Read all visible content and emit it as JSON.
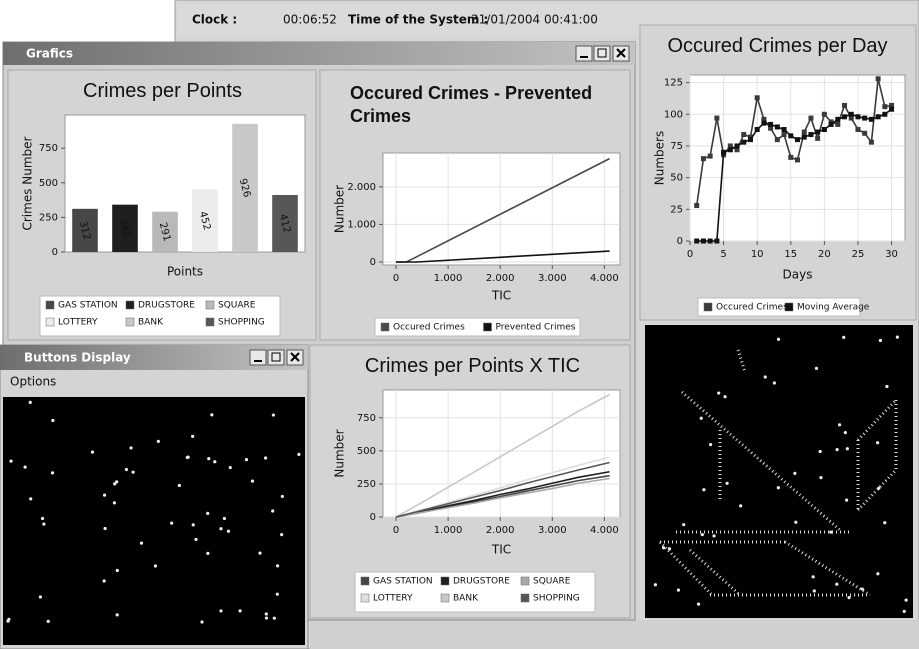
{
  "status_bar": {
    "clock_label": "Clock :",
    "clock": "00:06:52",
    "system_time_label": "Time of the System :",
    "system_time": "31/01/2004 00:41:00"
  },
  "windows": {
    "grafics": {
      "title": "Grafics"
    },
    "buttons_display": {
      "title": "Buttons Display",
      "menu": [
        "Options"
      ]
    }
  },
  "chart_data": [
    {
      "type": "bar",
      "title": "Crimes per Points",
      "categories": [
        "GAS STATION",
        "DRUGSTORE",
        "SQUARE",
        "LOTTERY",
        "BANK",
        "SHOPPING"
      ],
      "values": [
        312,
        342,
        291,
        452,
        926,
        412
      ],
      "colors": [
        "#474747",
        "#1e1e1e",
        "#b9b9b9",
        "#ececec",
        "#c8c8c8",
        "#575757"
      ],
      "x_label": "Points",
      "y_label": "Crimes Number",
      "ylim": [
        0,
        990
      ],
      "yticks": [
        0,
        250,
        500,
        750
      ],
      "grid": false,
      "legend": "bottom"
    },
    {
      "type": "line",
      "title": "Occured Crimes - Prevented Crimes",
      "x": [
        0,
        200,
        400,
        4100
      ],
      "series": [
        {
          "name": "Occured Crimes",
          "color": "#4a4a4a",
          "values": [
            0,
            0,
            141,
            2750
          ]
        },
        {
          "name": "Prevented Crimes",
          "color": "#111111",
          "values": [
            0,
            0,
            0,
            290
          ]
        }
      ],
      "x_label": "TIC",
      "y_label": "Number",
      "xlim": [
        -250,
        4300
      ],
      "xticks": [
        0,
        {
          "value": 1000,
          "label": "1.000"
        },
        {
          "value": 2000,
          "label": "2.000"
        },
        {
          "value": 3000,
          "label": "3.000"
        },
        {
          "value": 4000,
          "label": "4.000"
        }
      ],
      "ylim": [
        -80,
        2900
      ],
      "yticks": [
        0,
        {
          "value": 1000,
          "label": "1.000"
        },
        {
          "value": 2000,
          "label": "2.000"
        }
      ],
      "grid": true,
      "markers": false,
      "legend": "bottom"
    },
    {
      "type": "line",
      "title": "Occured Crimes per Day",
      "x": [
        1,
        2,
        3,
        4,
        5,
        6,
        7,
        8,
        9,
        10,
        11,
        12,
        13,
        14,
        15,
        16,
        17,
        18,
        19,
        20,
        21,
        22,
        23,
        24,
        25,
        26,
        27,
        28,
        29,
        30
      ],
      "series": [
        {
          "name": "Occured Crimes",
          "color": "#3a3a3a",
          "values": [
            28,
            65,
            67,
            97,
            68,
            75,
            72,
            84,
            82,
            113,
            96,
            89,
            80,
            84,
            66,
            64,
            86,
            97,
            81,
            100,
            94,
            92,
            107,
            97,
            88,
            85,
            78,
            128,
            106,
            107
          ]
        },
        {
          "name": "Moving Average",
          "color": "#111111",
          "values": [
            0,
            0,
            0,
            0,
            70,
            72,
            75,
            78,
            80,
            88,
            93,
            92,
            90,
            88,
            83,
            80,
            82,
            84,
            86,
            88,
            92,
            96,
            98,
            100,
            98,
            97,
            96,
            98,
            100,
            104
          ]
        }
      ],
      "x_label": "Days",
      "y_label": "Numbers",
      "xlim": [
        0,
        32
      ],
      "xticks": [
        0,
        5,
        10,
        15,
        20,
        25,
        30
      ],
      "ylim": [
        0,
        131
      ],
      "yticks": [
        0,
        25,
        50,
        75,
        100,
        125
      ],
      "grid": true,
      "markers": true,
      "legend": "bottom"
    },
    {
      "type": "line",
      "title": "Crimes per Points X TIC",
      "x": [
        0,
        500,
        1000,
        1500,
        2000,
        2500,
        3000,
        3500,
        4100
      ],
      "series": [
        {
          "name": "GAS STATION",
          "color": "#474747",
          "values": [
            0,
            35,
            75,
            115,
            155,
            195,
            235,
            275,
            312
          ]
        },
        {
          "name": "DRUGSTORE",
          "color": "#1e1e1e",
          "values": [
            0,
            40,
            85,
            125,
            170,
            210,
            255,
            300,
            342
          ]
        },
        {
          "name": "SQUARE",
          "color": "#a9a9a9",
          "values": [
            0,
            35,
            70,
            105,
            145,
            180,
            215,
            255,
            291
          ]
        },
        {
          "name": "LOTTERY",
          "color": "#dedede",
          "values": [
            0,
            55,
            110,
            165,
            220,
            280,
            335,
            390,
            452
          ]
        },
        {
          "name": "BANK",
          "color": "#c8c8c8",
          "values": [
            0,
            110,
            225,
            340,
            455,
            570,
            685,
            800,
            926
          ]
        },
        {
          "name": "SHOPPING",
          "color": "#575757",
          "values": [
            0,
            50,
            100,
            150,
            200,
            255,
            305,
            355,
            412
          ]
        }
      ],
      "x_label": "TIC",
      "y_label": "Number",
      "xlim": [
        -250,
        4300
      ],
      "xticks": [
        0,
        {
          "value": 1000,
          "label": "1.000"
        },
        {
          "value": 2000,
          "label": "2.000"
        },
        {
          "value": 3000,
          "label": "3.000"
        },
        {
          "value": 4000,
          "label": "4.000"
        }
      ],
      "ylim": [
        0,
        960
      ],
      "yticks": [
        0,
        250,
        500,
        750
      ],
      "grid": true,
      "markers": false,
      "legend": "bottom"
    }
  ]
}
